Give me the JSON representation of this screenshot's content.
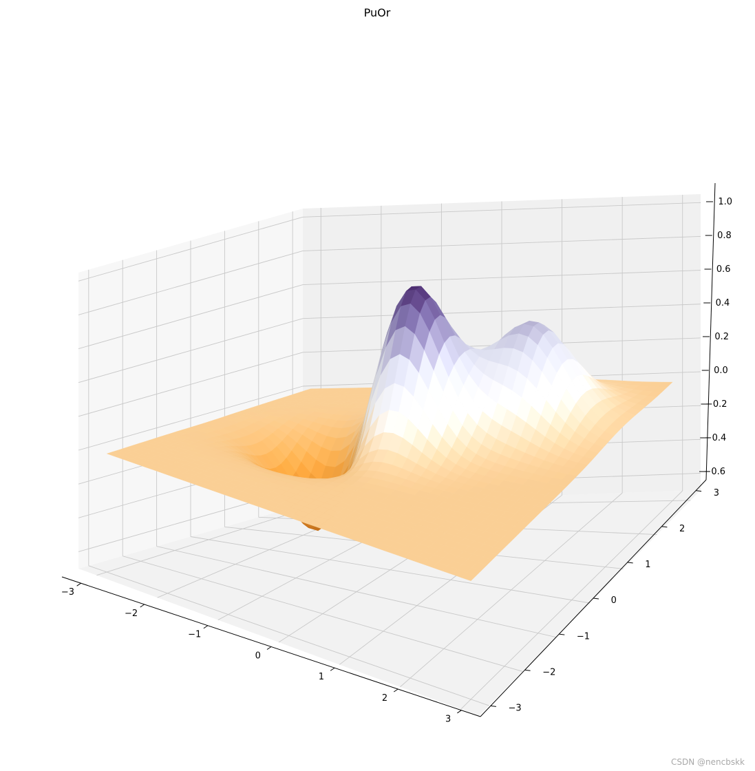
{
  "chart_data": {
    "type": "surface3d",
    "title": "PuOr",
    "colormap": "PuOr",
    "xlabel": "",
    "ylabel": "",
    "zlabel": "",
    "xlim": [
      -3.3,
      3.3
    ],
    "ylim": [
      -3.3,
      3.3
    ],
    "zlim": [
      -0.7,
      1.05
    ],
    "x_ticks": [
      -3,
      -2,
      -1,
      0,
      1,
      2,
      3
    ],
    "x_tick_labels": [
      "−3",
      "−2",
      "−1",
      "0",
      "1",
      "2",
      "3"
    ],
    "y_ticks": [
      -3,
      -2,
      -1,
      0,
      1,
      2,
      3
    ],
    "y_tick_labels": [
      "−3",
      "−2",
      "−1",
      "0",
      "1",
      "2",
      "3"
    ],
    "z_ticks": [
      -0.6,
      -0.4,
      -0.2,
      0.0,
      0.2,
      0.4,
      0.6,
      0.8,
      1.0
    ],
    "z_tick_labels": [
      "−0.6",
      "−0.4",
      "−0.2",
      "0.0",
      "0.2",
      "0.4",
      "0.6",
      "0.8",
      "1.0"
    ],
    "grid": true,
    "surface": {
      "features": [
        {
          "kind": "peak",
          "x": 0.0,
          "y": 0.5,
          "z": 1.0
        },
        {
          "kind": "peak",
          "x": 1.5,
          "y": 1.5,
          "z": 0.6
        },
        {
          "kind": "trough",
          "x": -1.0,
          "y": 0.0,
          "z": -0.65
        }
      ],
      "baseline_z": 0.0
    },
    "colors": {
      "purple_dark": "#2d004b",
      "purple": "#8073ac",
      "neutral": "#f7f7f7",
      "orange_light": "#fee0b6",
      "orange_dark": "#b35806"
    }
  },
  "watermark": "CSDN @nencbskk"
}
